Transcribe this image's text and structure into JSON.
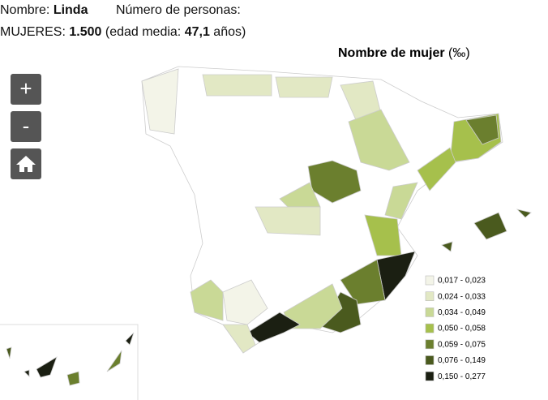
{
  "header": {
    "name_label": "Nombre:",
    "name": "Linda",
    "persons_label": "Número de personas:",
    "women_label": "MUJERES:",
    "women_count": "1.500",
    "age_prefix": "(edad media:",
    "age": "47,1",
    "age_suffix": "años)"
  },
  "map": {
    "title": "Nombre de mujer",
    "title_unit": "(‰)",
    "controls": {
      "zoom_in": "+",
      "zoom_out": "-"
    },
    "legend": [
      {
        "label": "0,017 - 0,023",
        "color": "#f3f4e8"
      },
      {
        "label": "0,024 - 0,033",
        "color": "#e2e8c4"
      },
      {
        "label": "0,034 - 0,049",
        "color": "#c9d996"
      },
      {
        "label": "0,050 - 0,058",
        "color": "#a6c04c"
      },
      {
        "label": "0,059 - 0,075",
        "color": "#6b7f2e"
      },
      {
        "label": "0,076 - 0,149",
        "color": "#4a5a1e"
      },
      {
        "label": "0,150 - 0,277",
        "color": "#1b1f12"
      }
    ]
  }
}
